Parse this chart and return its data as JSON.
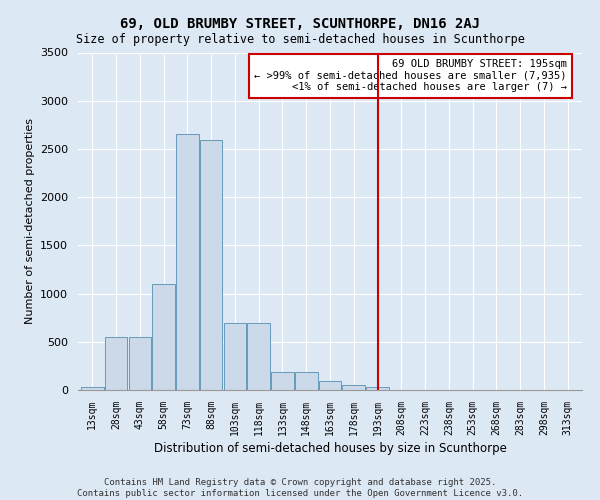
{
  "title": "69, OLD BRUMBY STREET, SCUNTHORPE, DN16 2AJ",
  "subtitle": "Size of property relative to semi-detached houses in Scunthorpe",
  "xlabel": "Distribution of semi-detached houses by size in Scunthorpe",
  "ylabel": "Number of semi-detached properties",
  "footnote": "Contains HM Land Registry data © Crown copyright and database right 2025.\nContains public sector information licensed under the Open Government Licence v3.0.",
  "categories": [
    "13sqm",
    "28sqm",
    "43sqm",
    "58sqm",
    "73sqm",
    "88sqm",
    "103sqm",
    "118sqm",
    "133sqm",
    "148sqm",
    "163sqm",
    "178sqm",
    "193sqm",
    "208sqm",
    "223sqm",
    "238sqm",
    "253sqm",
    "268sqm",
    "283sqm",
    "298sqm",
    "313sqm"
  ],
  "values": [
    30,
    550,
    550,
    1100,
    2650,
    2590,
    700,
    700,
    185,
    185,
    90,
    50,
    30,
    0,
    0,
    0,
    0,
    0,
    0,
    0,
    0
  ],
  "bar_color": "#ccd9e8",
  "bar_edge_color": "#6699bb",
  "bg_color": "#dde8f5",
  "grid_color": "#ffffff",
  "vline_color": "#cc0000",
  "annotation_text": "69 OLD BRUMBY STREET: 195sqm\n← >99% of semi-detached houses are smaller (7,935)\n<1% of semi-detached houses are larger (7) →",
  "annotation_box_color": "#cc0000",
  "ylim": [
    0,
    3500
  ],
  "yticks": [
    0,
    500,
    1000,
    1500,
    2000,
    2500,
    3000,
    3500
  ],
  "vline_index": 12
}
